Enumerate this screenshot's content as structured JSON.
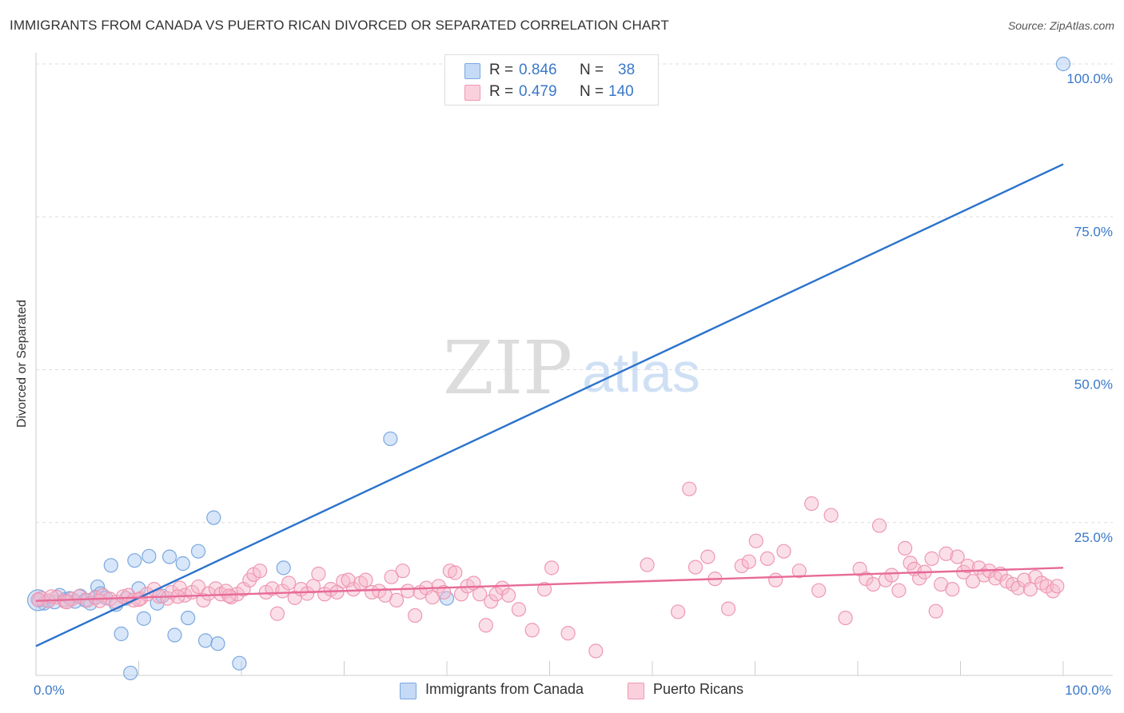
{
  "title": "IMMIGRANTS FROM CANADA VS PUERTO RICAN DIVORCED OR SEPARATED CORRELATION CHART",
  "source": "Source: ZipAtlas.com",
  "watermark": {
    "zip": "ZIP",
    "atlas": "atlas"
  },
  "legend": {
    "rows": [
      {
        "r_label": "R =",
        "r_value": "0.846",
        "n_label": "N =",
        "n_value": "38",
        "color": "#a9c8f2"
      },
      {
        "r_label": "R =",
        "r_value": "0.479",
        "n_label": "N =",
        "n_value": "140",
        "color": "#f7b8cb"
      }
    ]
  },
  "bottom_legend": [
    {
      "label": "Immigrants from Canada",
      "color": "#a9c8f2"
    },
    {
      "label": "Puerto Ricans",
      "color": "#f7b8cb"
    }
  ],
  "chart_data": {
    "type": "scatter",
    "title": "IMMIGRANTS FROM CANADA VS PUERTO RICAN DIVORCED OR SEPARATED CORRELATION CHART",
    "xlabel": "",
    "ylabel": "Divorced or Separated",
    "xlim": [
      0,
      100
    ],
    "ylim": [
      0,
      100
    ],
    "x_tick_labels": [
      {
        "value": 0,
        "label": "0.0%"
      },
      {
        "value": 100,
        "label": "100.0%"
      }
    ],
    "y_tick_labels": [
      {
        "value": 25,
        "label": "25.0%"
      },
      {
        "value": 50,
        "label": "50.0%"
      },
      {
        "value": 75,
        "label": "75.0%"
      },
      {
        "value": 100,
        "label": "100.0%"
      }
    ],
    "grid": true,
    "series": [
      {
        "name": "Immigrants from Canada",
        "color": "#a9c8f2",
        "stroke": "#7aa8e0",
        "trend": {
          "x": [
            0,
            100
          ],
          "y": [
            4.8,
            83.6
          ],
          "color": "#2a72cc"
        },
        "points": [
          [
            0.3,
            12.3
          ],
          [
            0.8,
            11.8
          ],
          [
            1.2,
            12.2
          ],
          [
            1.8,
            12.0
          ],
          [
            2.3,
            13.1
          ],
          [
            2.8,
            12.4
          ],
          [
            3.3,
            12.6
          ],
          [
            3.8,
            12.1
          ],
          [
            4.3,
            13.0
          ],
          [
            4.8,
            12.3
          ],
          [
            5.3,
            11.8
          ],
          [
            5.8,
            12.8
          ],
          [
            6.0,
            14.5
          ],
          [
            6.3,
            13.4
          ],
          [
            6.8,
            12.7
          ],
          [
            7.3,
            18.0
          ],
          [
            7.8,
            11.6
          ],
          [
            8.3,
            6.8
          ],
          [
            8.8,
            12.6
          ],
          [
            9.2,
            0.4
          ],
          [
            9.6,
            18.8
          ],
          [
            10.0,
            14.2
          ],
          [
            10.5,
            9.3
          ],
          [
            11.0,
            19.5
          ],
          [
            11.8,
            11.8
          ],
          [
            12.3,
            13.0
          ],
          [
            13.0,
            19.4
          ],
          [
            13.5,
            6.6
          ],
          [
            14.3,
            18.3
          ],
          [
            14.8,
            9.4
          ],
          [
            15.8,
            20.3
          ],
          [
            16.5,
            5.7
          ],
          [
            17.3,
            25.8
          ],
          [
            17.7,
            5.2
          ],
          [
            19.8,
            2.0
          ],
          [
            24.1,
            17.6
          ],
          [
            34.5,
            38.7
          ],
          [
            40.0,
            12.6
          ],
          [
            100.0,
            100.0
          ]
        ]
      },
      {
        "name": "Puerto Ricans",
        "color": "#f7b8cb",
        "stroke": "#ee98b2",
        "trend": {
          "x": [
            0,
            100
          ],
          "y": [
            12.2,
            17.6
          ],
          "color": "#e76a97"
        },
        "points": [
          [
            0.5,
            12.6
          ],
          [
            1.2,
            12.2
          ],
          [
            2.0,
            12.8
          ],
          [
            2.8,
            12.1
          ],
          [
            3.5,
            12.5
          ],
          [
            4.2,
            12.9
          ],
          [
            5.0,
            12.3
          ],
          [
            5.8,
            12.7
          ],
          [
            6.5,
            13.1
          ],
          [
            7.2,
            12.5
          ],
          [
            7.8,
            12.0
          ],
          [
            8.5,
            12.9
          ],
          [
            9.0,
            13.1
          ],
          [
            9.5,
            12.3
          ],
          [
            10.2,
            12.6
          ],
          [
            10.8,
            13.3
          ],
          [
            11.5,
            14.1
          ],
          [
            12.0,
            12.9
          ],
          [
            12.8,
            12.6
          ],
          [
            13.2,
            13.6
          ],
          [
            14.0,
            14.3
          ],
          [
            14.5,
            13.1
          ],
          [
            15.2,
            13.6
          ],
          [
            15.8,
            14.5
          ],
          [
            16.3,
            12.3
          ],
          [
            16.8,
            13.4
          ],
          [
            17.5,
            14.2
          ],
          [
            18.0,
            13.3
          ],
          [
            18.5,
            13.8
          ],
          [
            19.0,
            12.8
          ],
          [
            19.6,
            13.3
          ],
          [
            20.2,
            14.1
          ],
          [
            20.8,
            15.6
          ],
          [
            21.2,
            16.5
          ],
          [
            21.8,
            17.1
          ],
          [
            22.4,
            13.6
          ],
          [
            23.0,
            14.2
          ],
          [
            23.5,
            10.1
          ],
          [
            24.0,
            13.8
          ],
          [
            24.6,
            15.1
          ],
          [
            25.2,
            12.7
          ],
          [
            25.8,
            14.1
          ],
          [
            26.4,
            13.4
          ],
          [
            27.0,
            14.6
          ],
          [
            27.5,
            16.6
          ],
          [
            28.1,
            13.3
          ],
          [
            28.7,
            14.1
          ],
          [
            29.3,
            13.6
          ],
          [
            29.9,
            15.4
          ],
          [
            30.4,
            15.6
          ],
          [
            30.9,
            14.1
          ],
          [
            31.6,
            15.1
          ],
          [
            32.1,
            15.6
          ],
          [
            32.7,
            13.6
          ],
          [
            33.4,
            13.8
          ],
          [
            34.0,
            13.1
          ],
          [
            34.6,
            16.1
          ],
          [
            35.1,
            12.3
          ],
          [
            35.7,
            17.1
          ],
          [
            36.2,
            13.8
          ],
          [
            36.9,
            9.8
          ],
          [
            37.4,
            13.6
          ],
          [
            38.0,
            14.3
          ],
          [
            38.6,
            12.8
          ],
          [
            39.2,
            14.6
          ],
          [
            39.7,
            13.6
          ],
          [
            40.3,
            17.1
          ],
          [
            40.8,
            16.8
          ],
          [
            41.4,
            13.3
          ],
          [
            42.0,
            14.6
          ],
          [
            42.6,
            15.1
          ],
          [
            43.2,
            13.3
          ],
          [
            43.8,
            8.2
          ],
          [
            44.3,
            12.1
          ],
          [
            44.8,
            13.3
          ],
          [
            45.4,
            14.3
          ],
          [
            46.0,
            13.1
          ],
          [
            47.0,
            10.8
          ],
          [
            48.3,
            7.4
          ],
          [
            49.5,
            14.1
          ],
          [
            50.2,
            17.6
          ],
          [
            51.8,
            6.9
          ],
          [
            54.5,
            4.0
          ],
          [
            59.5,
            18.1
          ],
          [
            62.5,
            10.4
          ],
          [
            63.6,
            30.5
          ],
          [
            64.2,
            17.7
          ],
          [
            65.4,
            19.4
          ],
          [
            66.1,
            15.8
          ],
          [
            67.4,
            10.9
          ],
          [
            68.7,
            17.9
          ],
          [
            69.4,
            18.6
          ],
          [
            70.1,
            22.0
          ],
          [
            71.2,
            19.1
          ],
          [
            72.0,
            15.6
          ],
          [
            72.8,
            20.3
          ],
          [
            74.3,
            17.1
          ],
          [
            75.5,
            28.1
          ],
          [
            76.2,
            13.9
          ],
          [
            77.4,
            26.2
          ],
          [
            78.8,
            9.4
          ],
          [
            80.2,
            17.4
          ],
          [
            80.8,
            15.8
          ],
          [
            81.5,
            14.9
          ],
          [
            82.1,
            24.5
          ],
          [
            82.7,
            15.6
          ],
          [
            83.3,
            16.4
          ],
          [
            84.0,
            13.9
          ],
          [
            84.6,
            20.8
          ],
          [
            85.1,
            18.4
          ],
          [
            85.5,
            17.4
          ],
          [
            86.0,
            15.9
          ],
          [
            86.5,
            16.9
          ],
          [
            87.2,
            19.1
          ],
          [
            87.6,
            10.5
          ],
          [
            88.1,
            14.9
          ],
          [
            88.6,
            19.9
          ],
          [
            89.2,
            14.1
          ],
          [
            89.7,
            19.4
          ],
          [
            90.3,
            16.9
          ],
          [
            90.7,
            17.9
          ],
          [
            91.2,
            15.4
          ],
          [
            91.8,
            17.6
          ],
          [
            92.3,
            16.4
          ],
          [
            92.8,
            17.1
          ],
          [
            93.4,
            15.9
          ],
          [
            93.9,
            16.6
          ],
          [
            94.5,
            15.4
          ],
          [
            95.1,
            14.9
          ],
          [
            95.6,
            14.3
          ],
          [
            96.2,
            15.6
          ],
          [
            96.8,
            14.1
          ],
          [
            97.3,
            16.1
          ],
          [
            97.9,
            15.1
          ],
          [
            98.4,
            14.6
          ],
          [
            99.0,
            13.8
          ],
          [
            99.4,
            14.6
          ],
          [
            0.2,
            12.4
          ],
          [
            1.5,
            12.9
          ],
          [
            3.0,
            12.0
          ],
          [
            6.2,
            12.2
          ],
          [
            10.0,
            12.4
          ],
          [
            13.8,
            12.9
          ],
          [
            18.8,
            13.0
          ]
        ]
      }
    ]
  }
}
